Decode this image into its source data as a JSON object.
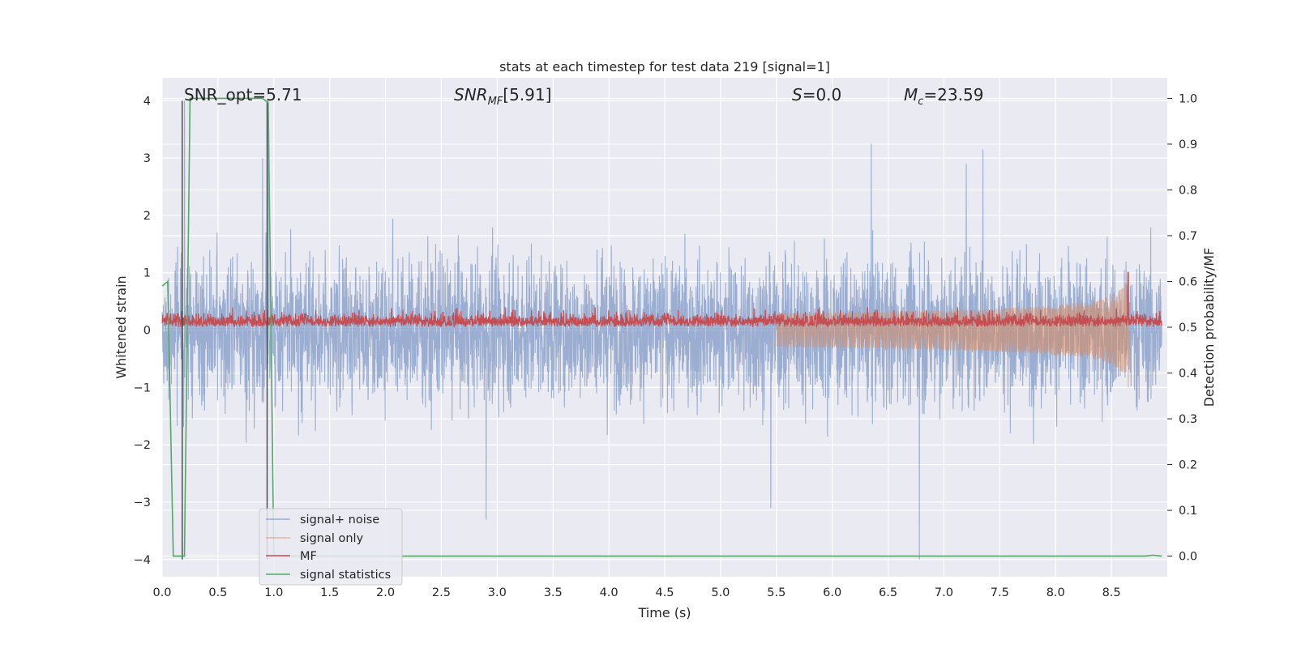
{
  "chart_data": {
    "type": "line",
    "title": "stats at each timestep for test data 219 [signal=1]",
    "xlabel": "Time (s)",
    "ylabel_left": "Whitened strain",
    "ylabel_right": "Detection probability/MF",
    "xlim": [
      0.0,
      9.0
    ],
    "ylim_left": [
      -4.3,
      4.4
    ],
    "ylim_right": [
      -0.045,
      1.045
    ],
    "x_ticks": [
      "0.0",
      "0.5",
      "1.0",
      "1.5",
      "2.0",
      "2.5",
      "3.0",
      "3.5",
      "4.0",
      "4.5",
      "5.0",
      "5.5",
      "6.0",
      "6.5",
      "7.0",
      "7.5",
      "8.0",
      "8.5"
    ],
    "y_left_ticks": [
      "−4",
      "−3",
      "−2",
      "−1",
      "0",
      "1",
      "2",
      "3",
      "4"
    ],
    "y_right_ticks": [
      "0.0",
      "0.1",
      "0.2",
      "0.3",
      "0.4",
      "0.5",
      "0.6",
      "0.7",
      "0.8",
      "0.9",
      "1.0"
    ],
    "grid": true,
    "legend_position": "lower-left",
    "annotations": {
      "snr_opt": "SNR_opt=5.71",
      "snr_mf": "[5.91]",
      "s": "=0.0",
      "mc": "=23.59"
    },
    "series": [
      {
        "name": "signal+ noise",
        "color": "#4c72b0",
        "alpha": 0.5,
        "axis": "left",
        "description_range": [
          -4.0,
          4.0
        ],
        "typical_range": [
          -2.2,
          2.2
        ],
        "peaks": [
          [
            0.2,
            4.0
          ],
          [
            0.9,
            3.0
          ],
          [
            0.95,
            4.0
          ],
          [
            6.35,
            3.25
          ],
          [
            7.35,
            3.15
          ],
          [
            7.2,
            2.9
          ],
          [
            2.9,
            -3.3
          ],
          [
            5.45,
            -3.1
          ],
          [
            6.78,
            -4.0
          ]
        ]
      },
      {
        "name": "signal only",
        "color": "#dd8452",
        "alpha": 0.5,
        "axis": "left",
        "chirp_start": 5.5,
        "chirp_end": 8.65,
        "peak_amplitude": 1.0
      },
      {
        "name": "MF",
        "color": "#c44e52",
        "axis": "right",
        "baseline": [
          0.5,
          0.52
        ],
        "noise_top_range": [
          0.53,
          0.56
        ],
        "peak": [
          8.65,
          0.62
        ]
      },
      {
        "name": "signal statistics",
        "color": "#55a868",
        "axis": "right",
        "x": [
          0.0,
          0.05,
          0.1,
          0.17,
          0.2,
          0.25,
          0.3,
          0.5,
          0.9,
          0.95,
          1.0,
          1.5,
          8.5,
          8.8,
          8.87,
          8.95
        ],
        "y": [
          0.59,
          0.6,
          0.0,
          0.0,
          0.0,
          1.0,
          1.0,
          1.0,
          1.0,
          0.99,
          0.0,
          0.0,
          0.0,
          0.0,
          0.002,
          0.0
        ]
      }
    ],
    "vertical_lines": [
      {
        "x": 0.18,
        "y_range": [
          -4.0,
          4.0
        ]
      },
      {
        "x": 0.94,
        "y_range": [
          -4.0,
          4.0
        ]
      }
    ]
  }
}
